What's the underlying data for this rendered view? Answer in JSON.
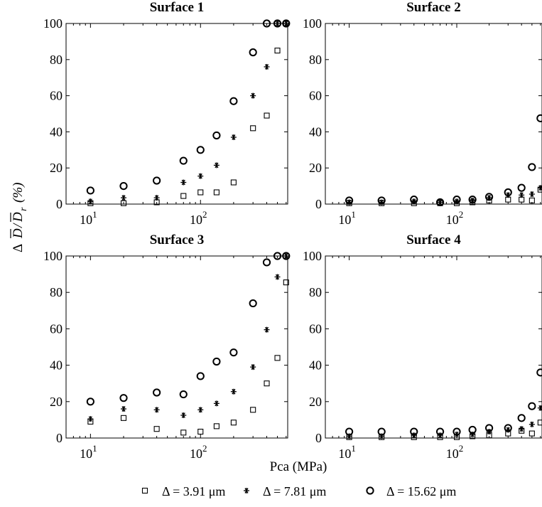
{
  "figure": {
    "ylabel": "Δ D̄/D̄r (%)",
    "ylabel_main": "Δ",
    "ylabel_d": "D",
    "ylabel_sub": "r",
    "ylabel_unit": "(%)",
    "xlabel": "Pca (MPa)"
  },
  "legend": {
    "items": [
      {
        "marker": "square",
        "label": "Δ = 3.91 μm"
      },
      {
        "marker": "star",
        "label": "Δ = 7.81 μm"
      },
      {
        "marker": "circle",
        "label": "Δ = 15.62 μm"
      }
    ]
  },
  "chart_data": [
    {
      "type": "scatter",
      "title": "Surface 1",
      "xscale": "log",
      "xlim": [
        6,
        620
      ],
      "ylim": [
        0,
        100
      ],
      "yticks": [
        0,
        20,
        40,
        60,
        80,
        100
      ],
      "xticks": [
        {
          "value": 10,
          "label": "10",
          "exp": "1"
        },
        {
          "value": 100,
          "label": "10",
          "exp": "2"
        }
      ],
      "x": [
        10,
        20,
        40,
        70,
        100,
        140,
        200,
        300,
        400,
        500,
        600
      ],
      "series": [
        {
          "name": "Δ = 3.91 μm",
          "marker": "square",
          "values": [
            0.5,
            0.5,
            1,
            4.5,
            6.5,
            6.5,
            12,
            42,
            49,
            85,
            100
          ]
        },
        {
          "name": "Δ = 7.81 μm",
          "marker": "star",
          "values": [
            1.5,
            3.5,
            3.5,
            12,
            15.5,
            21.5,
            37,
            60,
            76,
            100,
            100
          ]
        },
        {
          "name": "Δ = 15.62 μm",
          "marker": "circle",
          "values": [
            7.5,
            10,
            13,
            24,
            30,
            38,
            57,
            84,
            100,
            100,
            100
          ]
        }
      ]
    },
    {
      "type": "scatter",
      "title": "Surface 2",
      "xscale": "log",
      "xlim": [
        6,
        620
      ],
      "ylim": [
        0,
        100
      ],
      "yticks": [
        0,
        20,
        40,
        60,
        80,
        100
      ],
      "xticks": [
        {
          "value": 10,
          "label": "10",
          "exp": "1"
        },
        {
          "value": 100,
          "label": "10",
          "exp": "2"
        }
      ],
      "x": [
        10,
        20,
        40,
        70,
        100,
        140,
        200,
        300,
        400,
        500,
        600
      ],
      "series": [
        {
          "name": "Δ = 3.91 μm",
          "marker": "square",
          "values": [
            0.5,
            0.5,
            0.5,
            0.5,
            0.5,
            1,
            2,
            2.5,
            2.5,
            2,
            8
          ]
        },
        {
          "name": "Δ = 7.81 μm",
          "marker": "star",
          "values": [
            1,
            1,
            1.5,
            1,
            1.5,
            2,
            3.5,
            5,
            5,
            5.5,
            9
          ]
        },
        {
          "name": "Δ = 15.62 μm",
          "marker": "circle",
          "values": [
            2,
            2,
            2.5,
            1,
            2.5,
            2.5,
            4,
            6.5,
            9,
            20.5,
            47.5
          ]
        }
      ]
    },
    {
      "type": "scatter",
      "title": "Surface 3",
      "xscale": "log",
      "xlim": [
        6,
        620
      ],
      "ylim": [
        0,
        100
      ],
      "yticks": [
        0,
        20,
        40,
        60,
        80,
        100
      ],
      "xticks": [
        {
          "value": 10,
          "label": "10",
          "exp": "1"
        },
        {
          "value": 100,
          "label": "10",
          "exp": "2"
        }
      ],
      "x": [
        10,
        20,
        40,
        70,
        100,
        140,
        200,
        300,
        400,
        500,
        600
      ],
      "series": [
        {
          "name": "Δ = 3.91 μm",
          "marker": "square",
          "values": [
            9,
            11,
            5,
            3,
            3.5,
            6.5,
            8.5,
            15.5,
            30,
            44,
            85.5
          ]
        },
        {
          "name": "Δ = 7.81 μm",
          "marker": "star",
          "values": [
            10.5,
            16,
            15.5,
            12.5,
            15.5,
            19,
            25.5,
            39,
            59.5,
            88.5,
            100
          ]
        },
        {
          "name": "Δ = 15.62 μm",
          "marker": "circle",
          "values": [
            20,
            22,
            25,
            24,
            34,
            42,
            47,
            74,
            96.5,
            100,
            100
          ]
        }
      ]
    },
    {
      "type": "scatter",
      "title": "Surface 4",
      "xscale": "log",
      "xlim": [
        6,
        620
      ],
      "ylim": [
        0,
        100
      ],
      "yticks": [
        0,
        20,
        40,
        60,
        80,
        100
      ],
      "xticks": [
        {
          "value": 10,
          "label": "10",
          "exp": "1"
        },
        {
          "value": 100,
          "label": "10",
          "exp": "2"
        }
      ],
      "x": [
        10,
        20,
        40,
        70,
        100,
        140,
        200,
        300,
        400,
        500,
        600
      ],
      "series": [
        {
          "name": "Δ = 3.91 μm",
          "marker": "square",
          "values": [
            0.5,
            0.5,
            0.5,
            0.5,
            0.5,
            1,
            1.5,
            2.5,
            4,
            2.5,
            8.5
          ]
        },
        {
          "name": "Δ = 7.81 μm",
          "marker": "star",
          "values": [
            1,
            1,
            1.5,
            1.5,
            2,
            2,
            3.5,
            4.5,
            5,
            7.5,
            16.5
          ]
        },
        {
          "name": "Δ = 15.62 μm",
          "marker": "circle",
          "values": [
            3.5,
            3.5,
            3.5,
            3.5,
            3.5,
            4.5,
            5.5,
            5.5,
            11,
            17.5,
            36
          ]
        }
      ]
    }
  ]
}
